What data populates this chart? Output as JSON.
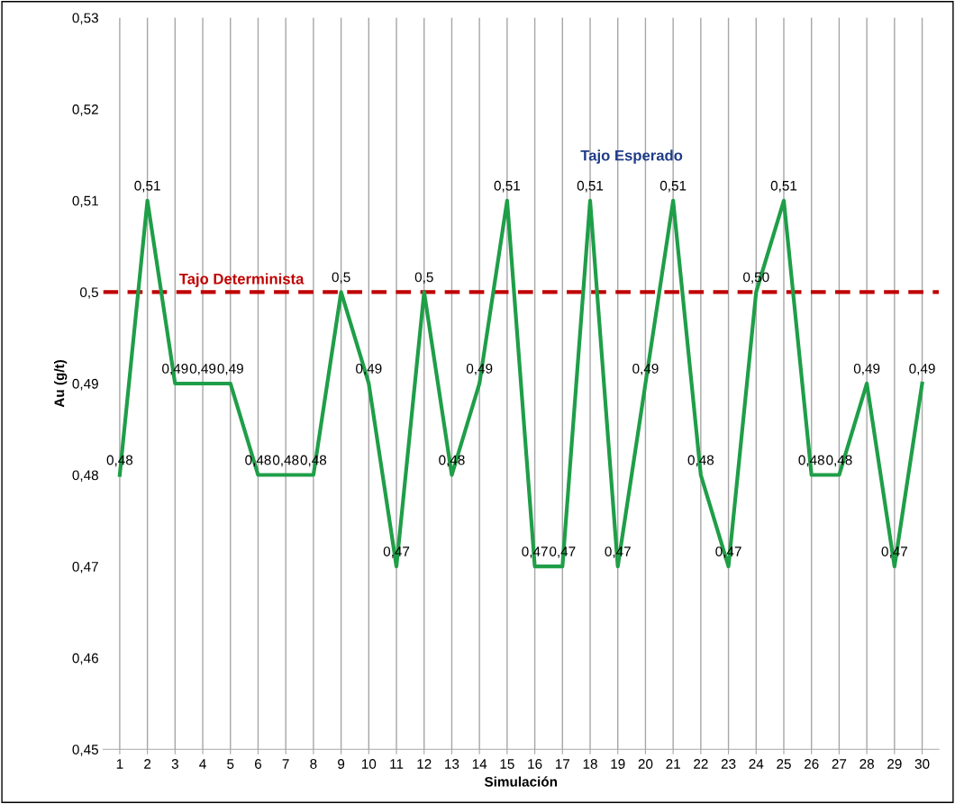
{
  "chart_data": {
    "type": "line",
    "xlabel": "Simulación",
    "ylabel": "Au (g/t)",
    "categories": [
      "1",
      "2",
      "3",
      "4",
      "5",
      "6",
      "7",
      "8",
      "9",
      "10",
      "11",
      "12",
      "13",
      "14",
      "15",
      "16",
      "17",
      "18",
      "19",
      "20",
      "21",
      "22",
      "23",
      "24",
      "25",
      "26",
      "27",
      "28",
      "29",
      "30"
    ],
    "series": [
      {
        "name": "Tajo Esperado",
        "color": "#1f9e48",
        "values": [
          0.48,
          0.51,
          0.49,
          0.49,
          0.49,
          0.48,
          0.48,
          0.48,
          0.5,
          0.49,
          0.47,
          0.5,
          0.48,
          0.49,
          0.51,
          0.47,
          0.47,
          0.51,
          0.47,
          0.49,
          0.51,
          0.48,
          0.47,
          0.5,
          0.51,
          0.48,
          0.48,
          0.49,
          0.47,
          0.49
        ],
        "value_labels": [
          "0,48",
          "0,51",
          "0,49",
          "0,49",
          "0,49",
          "0,48",
          "0,48",
          "0,48",
          "0,5",
          "0,49",
          "0,47",
          "0,5",
          "0,48",
          "0,49",
          "0,51",
          "0,47",
          "0,47",
          "0,51",
          "0,47",
          "0,49",
          "0,51",
          "0,48",
          "0,47",
          "0,50",
          "0,51",
          "0,48",
          "0,48",
          "0,49",
          "0,47",
          "0,49"
        ]
      }
    ],
    "ylim": [
      0.45,
      0.53
    ],
    "yticks": [
      {
        "value": 0.45,
        "label": "0,45"
      },
      {
        "value": 0.46,
        "label": "0,46"
      },
      {
        "value": 0.47,
        "label": "0,47"
      },
      {
        "value": 0.48,
        "label": "0,48"
      },
      {
        "value": 0.49,
        "label": "0,49"
      },
      {
        "value": 0.5,
        "label": "0,5"
      },
      {
        "value": 0.51,
        "label": "0,51"
      },
      {
        "value": 0.52,
        "label": "0,52"
      },
      {
        "value": 0.53,
        "label": "0,53"
      }
    ],
    "ref_lines": [
      {
        "axis": "y",
        "value": 0.5,
        "label": "Tajo Determinista",
        "color": "#c00000",
        "line_style": "dashed"
      }
    ],
    "grid": "x",
    "legend": false,
    "marker": "none",
    "line_style": "solid"
  }
}
